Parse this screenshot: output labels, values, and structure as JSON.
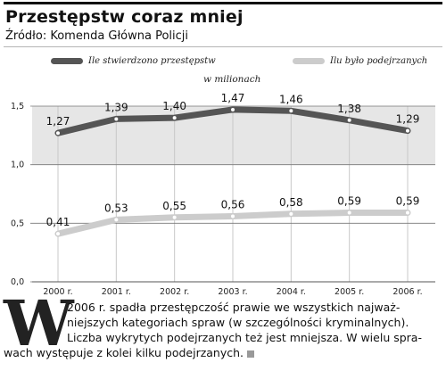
{
  "header": {
    "title": "Przestępstw coraz mniej",
    "source": "Źródło: Komenda Główna Policji"
  },
  "colors": {
    "series_dark": "#555555",
    "series_light": "#cccccc",
    "band_shade": "#e6e6e6"
  },
  "chart_data": {
    "type": "line",
    "unit_label": "w milionach",
    "x": [
      "2000 r.",
      "2001 r.",
      "2002 r.",
      "2003 r.",
      "2004 r.",
      "2005 r.",
      "2006 r."
    ],
    "series": [
      {
        "name": "Ile stwierdzono przestępstw",
        "values": [
          1.27,
          1.39,
          1.4,
          1.47,
          1.46,
          1.38,
          1.29
        ],
        "labels": [
          "1,27",
          "1,39",
          "1,40",
          "1,47",
          "1,46",
          "1,38",
          "1,29"
        ]
      },
      {
        "name": "Ilu było podejrzanych",
        "values": [
          0.41,
          0.53,
          0.55,
          0.56,
          0.58,
          0.59,
          0.59
        ],
        "labels": [
          "0,41",
          "0,53",
          "0,55",
          "0,56",
          "0,58",
          "0,59",
          "0,59"
        ]
      }
    ],
    "yticks": [
      "0,0",
      "0,5",
      "1,0",
      "1,5"
    ],
    "ylim": [
      0,
      1.5
    ],
    "grid": true,
    "legend": "top"
  },
  "article": {
    "dropcap": "W",
    "lines": [
      "2006 r. spadła przestępczość prawie we wszystkich najważ-",
      "niejszych kategoriach spraw (w szczególności kryminalnych).",
      "Liczba wykrytych podejrzanych też jest mniejsza. W wielu spra-",
      "wach występuje z kolei kilku podejrzanych."
    ]
  }
}
